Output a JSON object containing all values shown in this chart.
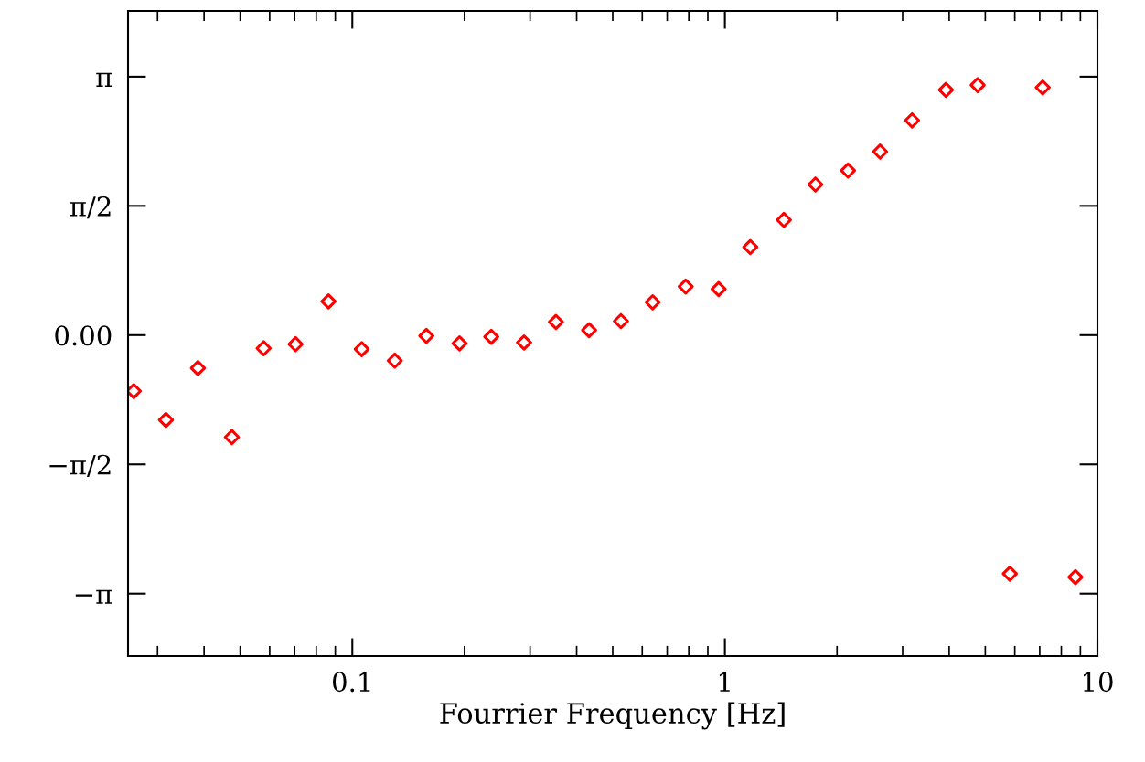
{
  "chart_data": {
    "type": "scatter",
    "xlabel": "Fourrier Frequency [Hz]",
    "x": [
      0.0259,
      0.0316,
      0.0385,
      0.0475,
      0.0578,
      0.0704,
      0.0863,
      0.106,
      0.13,
      0.158,
      0.194,
      0.236,
      0.289,
      0.352,
      0.432,
      0.526,
      0.64,
      0.785,
      0.962,
      1.17,
      1.44,
      1.75,
      2.14,
      2.61,
      3.18,
      3.92,
      4.77,
      5.82,
      7.13,
      8.73
    ],
    "series": [
      {
        "color": "#ff0000",
        "values": [
          -0.68,
          -1.03,
          -0.4,
          -1.24,
          -0.16,
          -0.11,
          0.41,
          -0.17,
          -0.31,
          -0.01,
          -0.1,
          -0.02,
          -0.09,
          0.16,
          0.06,
          0.17,
          0.4,
          0.59,
          0.56,
          1.07,
          1.4,
          1.83,
          2.0,
          2.23,
          2.61,
          2.98,
          3.04,
          -2.9,
          3.01,
          -2.94
        ]
      }
    ],
    "log": "x",
    "xlim": [
      0.025,
      10
    ],
    "xticks": [
      0.1,
      1,
      10
    ],
    "ylim": [
      -3.9,
      3.94
    ],
    "yticks": [
      {
        "value": -3.1416,
        "label": "−π"
      },
      {
        "value": -1.5708,
        "label": "−π/2"
      },
      {
        "value": 0,
        "label": "0.00"
      },
      {
        "value": 1.5708,
        "label": "π/2"
      },
      {
        "value": 3.1416,
        "label": "π"
      }
    ],
    "marker": "diamond",
    "grid": false,
    "legend": false
  }
}
